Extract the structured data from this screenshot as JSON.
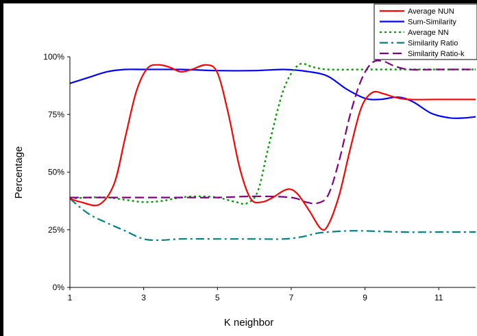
{
  "chart_data": {
    "type": "line",
    "xlabel": "K neighbor",
    "ylabel": "Percentage",
    "xlim": [
      1,
      12
    ],
    "ylim": [
      0,
      100
    ],
    "x_ticks": [
      1,
      3,
      5,
      7,
      9,
      11
    ],
    "x_tick_labels": [
      "1",
      "3",
      "5",
      "7",
      "9",
      "11"
    ],
    "y_ticks": [
      0,
      25,
      50,
      75,
      100
    ],
    "y_tick_labels": [
      "0%",
      "25%",
      "50%",
      "75%",
      "100%"
    ],
    "grid": false,
    "legend_position": "top-right",
    "series": [
      {
        "name": "Average NUN",
        "color": "#ff0000",
        "style": "solid",
        "points": [
          [
            1,
            38.5
          ],
          [
            1.3,
            37
          ],
          [
            1.8,
            36
          ],
          [
            2.2,
            45
          ],
          [
            2.5,
            65
          ],
          [
            2.8,
            85
          ],
          [
            3.1,
            95
          ],
          [
            3.4,
            96.5
          ],
          [
            3.7,
            95.5
          ],
          [
            4.0,
            93.5
          ],
          [
            4.3,
            94.5
          ],
          [
            4.7,
            96.5
          ],
          [
            5.0,
            93
          ],
          [
            5.3,
            75
          ],
          [
            5.6,
            52
          ],
          [
            5.9,
            38.5
          ],
          [
            6.2,
            37
          ],
          [
            6.5,
            39
          ],
          [
            6.8,
            42
          ],
          [
            7.0,
            42.5
          ],
          [
            7.2,
            40
          ],
          [
            7.5,
            33
          ],
          [
            7.8,
            25.5
          ],
          [
            8.0,
            27
          ],
          [
            8.3,
            40
          ],
          [
            8.6,
            60
          ],
          [
            8.9,
            78
          ],
          [
            9.2,
            84.5
          ],
          [
            9.5,
            84
          ],
          [
            9.8,
            82.5
          ],
          [
            10.2,
            81.5
          ],
          [
            11.0,
            81.5
          ],
          [
            12,
            81.5
          ]
        ]
      },
      {
        "name": "Sum-Similarity",
        "color": "#0000ff",
        "style": "solid",
        "points": [
          [
            1,
            88.5
          ],
          [
            1.5,
            91
          ],
          [
            2,
            93.5
          ],
          [
            2.5,
            94.5
          ],
          [
            3,
            94.5
          ],
          [
            4,
            94.5
          ],
          [
            5,
            94
          ],
          [
            6,
            94
          ],
          [
            6.8,
            94.5
          ],
          [
            7.5,
            93.5
          ],
          [
            8,
            91.5
          ],
          [
            8.5,
            86
          ],
          [
            9,
            82
          ],
          [
            9.4,
            81.5
          ],
          [
            9.9,
            82.5
          ],
          [
            10.3,
            80.5
          ],
          [
            10.8,
            75.5
          ],
          [
            11.3,
            73.5
          ],
          [
            11.7,
            73.5
          ],
          [
            12,
            74
          ]
        ]
      },
      {
        "name": "Average NN",
        "color": "#009900",
        "style": "dotted",
        "points": [
          [
            1,
            38.5
          ],
          [
            1.5,
            39
          ],
          [
            2,
            39
          ],
          [
            2.5,
            38
          ],
          [
            3,
            37
          ],
          [
            3.5,
            37.5
          ],
          [
            4,
            39
          ],
          [
            4.5,
            39.5
          ],
          [
            5,
            39
          ],
          [
            5.5,
            37
          ],
          [
            5.8,
            36.5
          ],
          [
            6.1,
            42
          ],
          [
            6.4,
            62
          ],
          [
            6.8,
            86
          ],
          [
            7.2,
            96.5
          ],
          [
            7.6,
            95.5
          ],
          [
            8,
            94.5
          ],
          [
            9,
            94.5
          ],
          [
            10,
            94.5
          ],
          [
            11,
            94.5
          ],
          [
            12,
            94.5
          ]
        ]
      },
      {
        "name": "Similarity Ratio",
        "color": "#008080",
        "style": "dashdot",
        "points": [
          [
            1,
            38.5
          ],
          [
            1.5,
            32
          ],
          [
            2,
            28
          ],
          [
            2.5,
            24.5
          ],
          [
            3,
            21
          ],
          [
            3.5,
            20.5
          ],
          [
            4,
            21
          ],
          [
            5,
            21
          ],
          [
            6,
            21
          ],
          [
            6.8,
            21
          ],
          [
            7.3,
            22
          ],
          [
            7.7,
            23.5
          ],
          [
            8,
            24
          ],
          [
            8.5,
            24.5
          ],
          [
            9,
            24.5
          ],
          [
            10,
            24
          ],
          [
            11,
            24
          ],
          [
            12,
            24
          ]
        ]
      },
      {
        "name": "Similarity Ratio-k",
        "color": "#800080",
        "style": "dashed",
        "points": [
          [
            1,
            39
          ],
          [
            2,
            39
          ],
          [
            3,
            39
          ],
          [
            4,
            39
          ],
          [
            5,
            39
          ],
          [
            6,
            39.5
          ],
          [
            7,
            39
          ],
          [
            7.4,
            37
          ],
          [
            7.7,
            36.5
          ],
          [
            8,
            40
          ],
          [
            8.3,
            55
          ],
          [
            8.6,
            75
          ],
          [
            8.9,
            90
          ],
          [
            9.2,
            97.5
          ],
          [
            9.5,
            98
          ],
          [
            9.8,
            96
          ],
          [
            10.2,
            94.5
          ],
          [
            11,
            94.5
          ],
          [
            12,
            94.5
          ]
        ]
      }
    ]
  }
}
